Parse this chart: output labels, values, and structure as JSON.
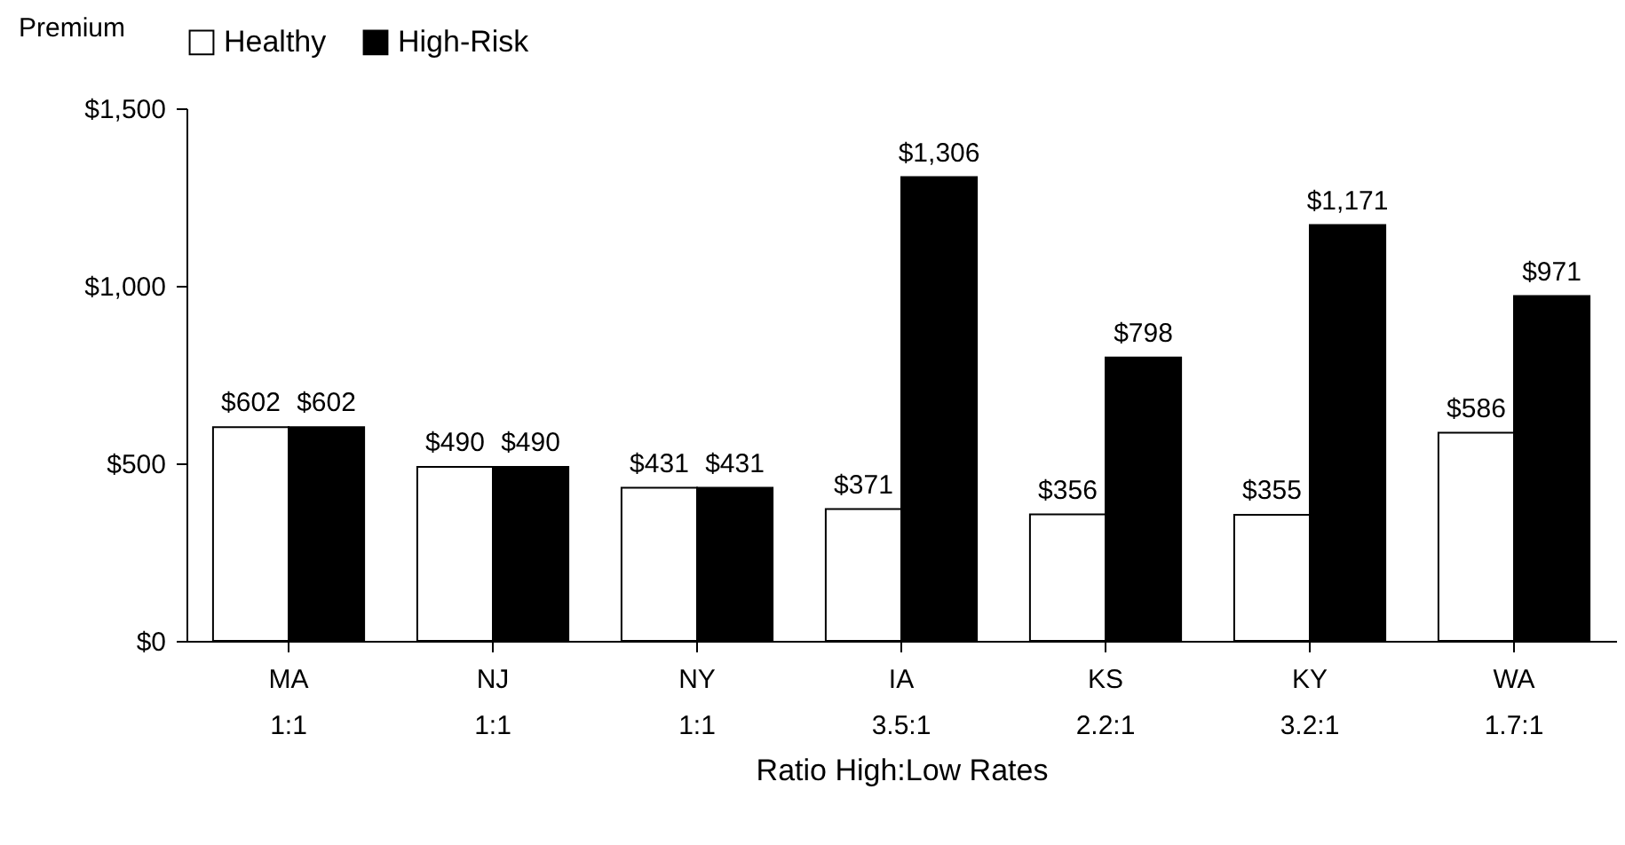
{
  "chart_data": {
    "type": "bar",
    "ylabel": "Premium",
    "xlabel": "Ratio High:Low Rates",
    "categories": [
      "MA\n1:1",
      "NJ\n1:1",
      "NY\n1:1",
      "IA\n3.5:1",
      "KS\n2.2:1",
      "KY\n3.2:1",
      "WA\n1.7:1"
    ],
    "series": [
      {
        "name": "Healthy",
        "color": "#ffffff",
        "values": [
          602,
          490,
          431,
          371,
          356,
          355,
          586
        ],
        "value_labels": [
          "$602",
          "$490",
          "$431",
          "$371",
          "$356",
          "$355",
          "$586"
        ]
      },
      {
        "name": "High-Risk",
        "color": "#000000",
        "values": [
          602,
          490,
          431,
          1306,
          798,
          1171,
          971
        ],
        "value_labels": [
          "$602",
          "$490",
          "$431",
          "$1,306",
          "$798",
          "$1,171",
          "$971"
        ]
      }
    ],
    "ylim": [
      0,
      1500
    ],
    "yticks": [
      {
        "value": 0,
        "label": "$0"
      },
      {
        "value": 500,
        "label": "$500"
      },
      {
        "value": 1000,
        "label": "$1,000"
      },
      {
        "value": 1500,
        "label": "$1,500"
      }
    ],
    "grid": false,
    "legend": "top"
  }
}
